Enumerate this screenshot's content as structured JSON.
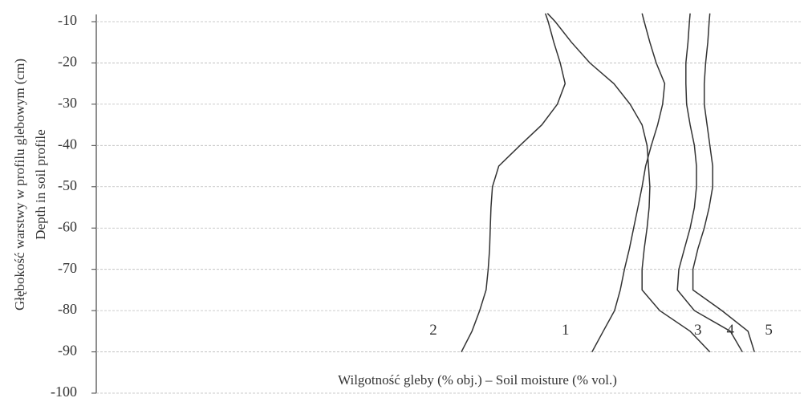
{
  "chart_data": {
    "type": "line",
    "y_label": [
      "Głębokość warstwy w profilu glebowym (cm)",
      "Depth in soil profile"
    ],
    "x_label": "Wilgotność gleby (% obj.) – Soil moisture (% vol.)",
    "xlim": [
      0,
      100
    ],
    "ylim": [
      -100,
      -8
    ],
    "yticks": [
      -10,
      -20,
      -30,
      -40,
      -50,
      -60,
      -70,
      -80,
      -90,
      -100
    ],
    "grid": true,
    "series": [
      {
        "name": "1",
        "color": "#333333",
        "x": [
          77.3,
          77.6,
          78.4,
          79.3,
          80.5,
          80.2,
          79.5,
          78.6,
          77.8,
          77.3,
          76.7,
          76.1,
          75.5,
          74.8,
          74.2,
          73.4,
          71.8,
          70.2
        ],
        "y": [
          -8,
          -10,
          -15,
          -20,
          -25,
          -30,
          -35,
          -40,
          -45,
          -50,
          -55,
          -60,
          -65,
          -70,
          -75,
          -80,
          -85,
          -90
        ]
      },
      {
        "name": "2",
        "color": "#333333",
        "x": [
          63.6,
          64.0,
          64.8,
          65.7,
          66.4,
          65.3,
          63.1,
          60.0,
          57.0,
          56.1,
          55.9,
          55.8,
          55.7,
          55.5,
          55.2,
          54.3,
          53.2,
          51.7
        ],
        "y": [
          -8,
          -10,
          -15,
          -20,
          -25,
          -30,
          -35,
          -40,
          -45,
          -50,
          -55,
          -60,
          -65,
          -70,
          -75,
          -80,
          -85,
          -90
        ]
      },
      {
        "name": "3",
        "color": "#333333",
        "x": [
          63.9,
          65.0,
          67.3,
          69.9,
          73.3,
          75.6,
          77.3,
          78.0,
          78.2,
          78.4,
          78.3,
          78.0,
          77.6,
          77.3,
          77.3,
          79.8,
          84.1,
          86.9
        ],
        "y": [
          -8,
          -10,
          -15,
          -20,
          -25,
          -30,
          -35,
          -40,
          -45,
          -50,
          -55,
          -60,
          -65,
          -70,
          -75,
          -80,
          -85,
          -90
        ]
      },
      {
        "name": "4",
        "color": "#333333",
        "x": [
          84.1,
          84.0,
          83.8,
          83.5,
          83.5,
          83.6,
          84.1,
          84.7,
          85.0,
          85.0,
          84.7,
          84.1,
          83.3,
          82.5,
          82.3,
          84.7,
          89.8,
          91.5
        ],
        "y": [
          -8,
          -10,
          -15,
          -20,
          -25,
          -30,
          -35,
          -40,
          -45,
          -50,
          -55,
          -60,
          -65,
          -70,
          -75,
          -80,
          -85,
          -90
        ]
      },
      {
        "name": "5",
        "color": "#333333",
        "x": [
          86.9,
          86.8,
          86.6,
          86.3,
          86.1,
          86.1,
          86.5,
          86.9,
          87.3,
          87.3,
          86.8,
          86.1,
          85.2,
          84.5,
          84.5,
          88.6,
          92.3,
          93.2
        ],
        "y": [
          -8,
          -10,
          -15,
          -20,
          -25,
          -30,
          -35,
          -40,
          -45,
          -50,
          -55,
          -60,
          -65,
          -70,
          -75,
          -80,
          -85,
          -90
        ]
      }
    ]
  }
}
